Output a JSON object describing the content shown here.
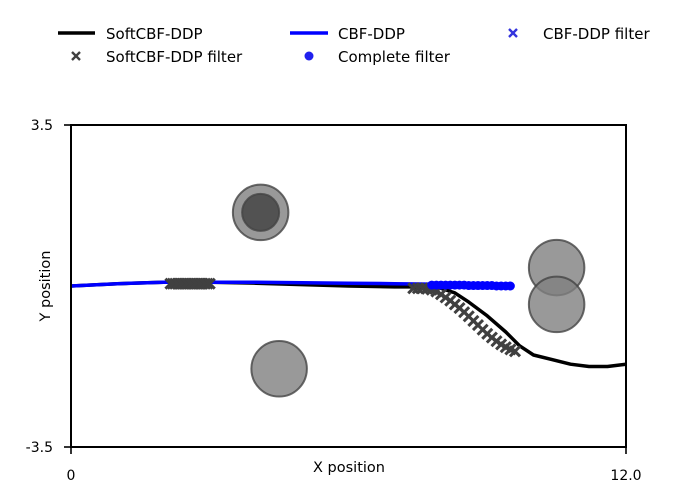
{
  "chart_data": {
    "type": "line",
    "xlabel": "X position",
    "ylabel": "Y position",
    "xlim": [
      0,
      12.0
    ],
    "ylim": [
      -3.5,
      3.5
    ],
    "x_ticks": [
      "0",
      "12.0"
    ],
    "y_ticks": [
      "3.5",
      "-3.5"
    ],
    "grid": false,
    "legend_placement": "top",
    "boundary_lines": [
      3.5,
      -3.5
    ],
    "obstacles": [
      {
        "x": 4.1,
        "y": 1.6,
        "r": 0.6,
        "color": "#808080"
      },
      {
        "x": 4.1,
        "y": 1.6,
        "r": 0.4,
        "color": "#404040"
      },
      {
        "x": 10.5,
        "y": 0.4,
        "r": 0.6,
        "color": "#808080"
      },
      {
        "x": 10.5,
        "y": -0.4,
        "r": 0.6,
        "color": "#808080"
      },
      {
        "x": 4.5,
        "y": -1.8,
        "r": 0.6,
        "color": "#808080"
      }
    ],
    "series": [
      {
        "name": "SoftCBF-DDP",
        "kind": "line",
        "color": "#000000",
        "x": [
          0,
          1.0,
          2.0,
          3.0,
          4.0,
          5.0,
          6.0,
          7.0,
          7.5,
          8.0,
          8.3,
          8.6,
          9.0,
          9.4,
          9.7,
          10.0,
          10.4,
          10.8,
          11.2,
          11.6,
          12.0
        ],
        "y": [
          0.0,
          0.05,
          0.08,
          0.08,
          0.06,
          0.03,
          0.0,
          -0.02,
          -0.02,
          -0.05,
          -0.15,
          -0.35,
          -0.65,
          -1.0,
          -1.3,
          -1.5,
          -1.6,
          -1.7,
          -1.75,
          -1.75,
          -1.7
        ]
      },
      {
        "name": "CBF-DDP",
        "kind": "line",
        "color": "#0000ff",
        "x": [
          0,
          1.0,
          2.0,
          3.0,
          4.0,
          5.0,
          6.0,
          7.0,
          8.0,
          8.5,
          9.0,
          9.5
        ],
        "y": [
          0.0,
          0.05,
          0.08,
          0.08,
          0.08,
          0.07,
          0.06,
          0.05,
          0.04,
          0.02,
          0.01,
          0.0
        ]
      },
      {
        "name": "SoftCBF-DDP filter",
        "kind": "x-marker",
        "color": "#404040",
        "x": [
          2.15,
          2.2,
          2.25,
          2.3,
          2.35,
          2.4,
          2.45,
          2.5,
          2.55,
          2.6,
          2.65,
          2.7,
          2.75,
          2.8,
          2.85,
          2.9,
          2.95,
          3.0,
          7.4,
          7.5,
          7.6,
          7.7,
          7.8,
          7.9,
          8.0,
          8.1,
          8.2,
          8.3,
          8.4,
          8.5,
          8.6,
          8.7,
          8.8,
          8.9,
          9.0,
          9.1,
          9.2,
          9.3,
          9.4,
          9.5,
          9.6
        ],
        "y": [
          0.05,
          0.05,
          0.05,
          0.05,
          0.05,
          0.05,
          0.05,
          0.05,
          0.05,
          0.05,
          0.05,
          0.05,
          0.05,
          0.05,
          0.05,
          0.05,
          0.05,
          0.05,
          -0.05,
          -0.05,
          -0.05,
          -0.06,
          -0.08,
          -0.12,
          -0.18,
          -0.25,
          -0.32,
          -0.4,
          -0.48,
          -0.57,
          -0.66,
          -0.76,
          -0.85,
          -0.95,
          -1.04,
          -1.12,
          -1.2,
          -1.27,
          -1.33,
          -1.38,
          -1.42
        ]
      },
      {
        "name": "Complete filter",
        "kind": "dot",
        "color": "#0000ff",
        "x": [
          7.8,
          7.9,
          8.0,
          8.1,
          8.2,
          8.3,
          8.4,
          8.5,
          8.6,
          8.7,
          8.8,
          8.9,
          9.0,
          9.1,
          9.2,
          9.3,
          9.4,
          9.5
        ],
        "y": [
          0.02,
          0.02,
          0.02,
          0.02,
          0.02,
          0.02,
          0.02,
          0.02,
          0.01,
          0.01,
          0.01,
          0.01,
          0.01,
          0.01,
          0.0,
          0.0,
          0.0,
          0.0
        ]
      },
      {
        "name": "CBF-DDP filter",
        "kind": "x-marker",
        "color": "#3333dd",
        "x": [],
        "y": []
      }
    ],
    "legend": [
      {
        "label": "SoftCBF-DDP",
        "kind": "line",
        "color": "#000000"
      },
      {
        "label": "CBF-DDP",
        "kind": "line",
        "color": "#0000ff"
      },
      {
        "label": "CBF-DDP filter",
        "kind": "x-marker",
        "color": "#3333dd"
      },
      {
        "label": "SoftCBF-DDP filter",
        "kind": "x-marker",
        "color": "#404040"
      },
      {
        "label": "Complete filter",
        "kind": "dot",
        "color": "#2020ee"
      }
    ]
  }
}
